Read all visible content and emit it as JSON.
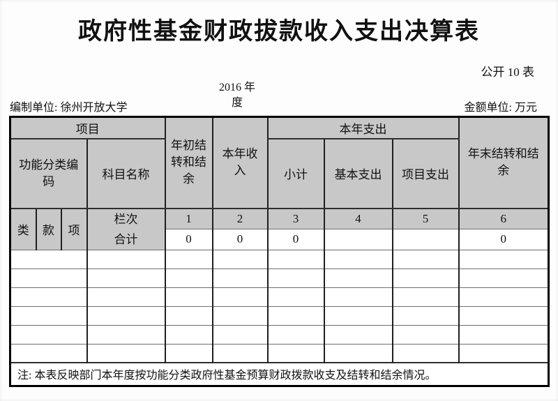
{
  "page": {
    "title": "政府性基金财政拔款收入支出决算表",
    "public_table_label": "公开 10 表",
    "prepared_by": "编制单位: 徐州开放大学",
    "fiscal_year": "2016 年\n度",
    "amount_unit": "金额单位: 万元"
  },
  "table": {
    "header": {
      "item_group": "项目",
      "func_code": "功能分类编\n码",
      "subject_name": "科目名称",
      "begin_balance": "年初结\n转和结\n余",
      "year_income": "本年收\n入",
      "year_expense_group": "本年支出",
      "subtotal": "小计",
      "basic_expense": "基本支出",
      "project_expense": "项目支出",
      "end_balance": "年末结转和结\n余",
      "col_class": "类",
      "col_section": "款",
      "col_item": "项",
      "row_label_top": "栏次",
      "row_label_bottom": "合计",
      "column_numbers": [
        "1",
        "2",
        "3",
        "4",
        "5",
        "6"
      ]
    },
    "total_row_values": [
      "0",
      "0",
      "0",
      "",
      "",
      "0"
    ],
    "empty_row_count": 6,
    "note": "注: 本表反映部门本年度按功能分类政府性基金预算财政拨款收支及结转和结余情况。"
  },
  "colors": {
    "header_bg": "#c8c8c8",
    "border_vertical": "#1f1f1f",
    "border_horizontal": "#6e6e6e",
    "text": "#111111"
  }
}
